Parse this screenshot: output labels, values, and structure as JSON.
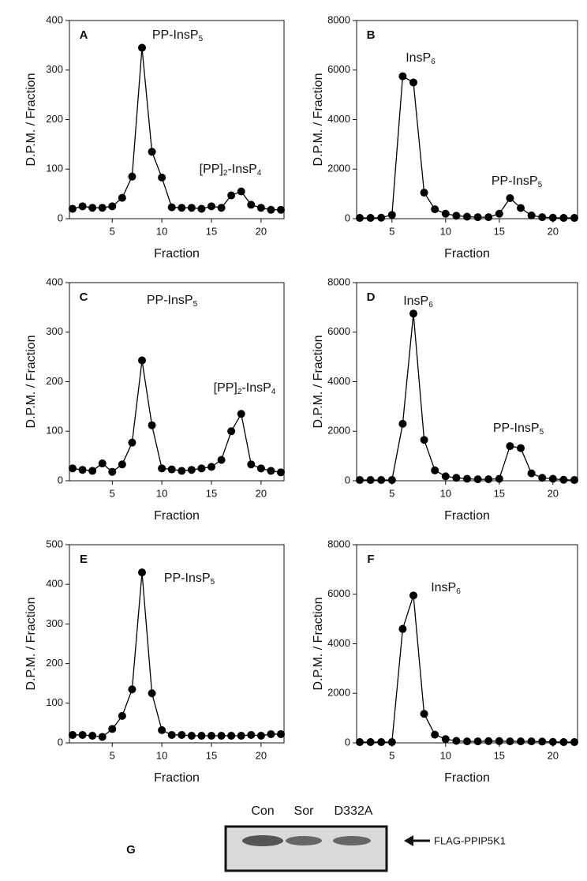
{
  "chart_data": [
    {
      "type": "line",
      "label": "A",
      "xlabel": "Fraction",
      "ylabel": "D.P.M. / Fraction",
      "x": [
        1,
        2,
        3,
        4,
        5,
        6,
        7,
        8,
        9,
        10,
        11,
        12,
        13,
        14,
        15,
        16,
        17,
        18,
        19,
        20,
        21,
        22
      ],
      "values": [
        20,
        25,
        22,
        22,
        25,
        42,
        85,
        345,
        135,
        83,
        23,
        22,
        22,
        20,
        25,
        22,
        47,
        55,
        28,
        22,
        18,
        18
      ],
      "xlim": [
        1,
        22
      ],
      "xticks": [
        5,
        10,
        15,
        20
      ],
      "ylim": [
        0,
        400
      ],
      "yticks": [
        0,
        100,
        200,
        300,
        400
      ],
      "annotations": [
        "PP-InsP5",
        "[PP]2-InsP4"
      ],
      "color": "#000000"
    },
    {
      "type": "line",
      "label": "B",
      "xlabel": "Fraction",
      "ylabel": "D.P.M. / Fraction",
      "x": [
        2,
        3,
        4,
        5,
        6,
        7,
        8,
        9,
        10,
        11,
        12,
        13,
        14,
        15,
        16,
        17,
        18,
        19,
        20,
        21,
        22
      ],
      "values": [
        30,
        30,
        40,
        150,
        5750,
        5500,
        1050,
        380,
        200,
        120,
        80,
        60,
        60,
        200,
        830,
        430,
        130,
        60,
        40,
        30,
        30
      ],
      "xlim": [
        2,
        22
      ],
      "xticks": [
        5,
        10,
        15,
        20
      ],
      "ylim": [
        0,
        8000
      ],
      "yticks": [
        0,
        2000,
        4000,
        6000,
        8000
      ],
      "annotations": [
        "InsP6",
        "PP-InsP5"
      ],
      "color": "#000000"
    },
    {
      "type": "line",
      "label": "C",
      "xlabel": "Fraction",
      "ylabel": "D.P.M. / Fraction",
      "x": [
        1,
        2,
        3,
        4,
        5,
        6,
        7,
        8,
        9,
        10,
        11,
        12,
        13,
        14,
        15,
        16,
        17,
        18,
        19,
        20,
        21,
        22
      ],
      "values": [
        25,
        22,
        20,
        35,
        18,
        33,
        77,
        243,
        112,
        25,
        23,
        20,
        22,
        25,
        28,
        42,
        100,
        135,
        33,
        25,
        20,
        17
      ],
      "xlim": [
        1,
        22
      ],
      "xticks": [
        5,
        10,
        15,
        20
      ],
      "ylim": [
        0,
        400
      ],
      "yticks": [
        0,
        100,
        200,
        300,
        400
      ],
      "annotations": [
        "PP-InsP5",
        "[PP]2-InsP4"
      ],
      "color": "#000000"
    },
    {
      "type": "line",
      "label": "D",
      "xlabel": "Fraction",
      "ylabel": "D.P.M. / Fraction",
      "x": [
        2,
        3,
        4,
        5,
        6,
        7,
        8,
        9,
        10,
        11,
        12,
        13,
        14,
        15,
        16,
        17,
        18,
        19,
        20,
        21,
        22
      ],
      "values": [
        30,
        30,
        30,
        30,
        2300,
        6750,
        1650,
        420,
        180,
        120,
        80,
        60,
        60,
        80,
        1400,
        1320,
        300,
        120,
        80,
        40,
        30
      ],
      "xlim": [
        2,
        22
      ],
      "xticks": [
        5,
        10,
        15,
        20
      ],
      "ylim": [
        0,
        8000
      ],
      "yticks": [
        0,
        2000,
        4000,
        6000,
        8000
      ],
      "annotations": [
        "InsP6",
        "PP-InsP5"
      ],
      "color": "#000000"
    },
    {
      "type": "line",
      "label": "E",
      "xlabel": "Fraction",
      "ylabel": "D.P.M. / Fraction",
      "x": [
        1,
        2,
        3,
        4,
        5,
        6,
        7,
        8,
        9,
        10,
        11,
        12,
        13,
        14,
        15,
        16,
        17,
        18,
        19,
        20,
        21,
        22
      ],
      "values": [
        20,
        20,
        18,
        15,
        35,
        68,
        135,
        430,
        125,
        32,
        20,
        20,
        18,
        18,
        18,
        18,
        18,
        18,
        20,
        18,
        22,
        22
      ],
      "xlim": [
        1,
        22
      ],
      "xticks": [
        5,
        10,
        15,
        20
      ],
      "ylim": [
        0,
        500
      ],
      "yticks": [
        0,
        100,
        200,
        300,
        400,
        500
      ],
      "annotations": [
        "PP-InsP5"
      ],
      "color": "#000000"
    },
    {
      "type": "line",
      "label": "F",
      "xlabel": "Fraction",
      "ylabel": "D.P.M. / Fraction",
      "x": [
        2,
        3,
        4,
        5,
        6,
        7,
        8,
        9,
        10,
        11,
        12,
        13,
        14,
        15,
        16,
        17,
        18,
        19,
        20,
        21,
        22
      ],
      "values": [
        30,
        30,
        30,
        30,
        4600,
        5950,
        1170,
        330,
        150,
        80,
        60,
        60,
        70,
        70,
        60,
        60,
        60,
        50,
        40,
        30,
        30
      ],
      "xlim": [
        2,
        22
      ],
      "xticks": [
        5,
        10,
        15,
        20
      ],
      "ylim": [
        0,
        8000
      ],
      "yticks": [
        0,
        2000,
        4000,
        6000,
        8000
      ],
      "annotations": [
        "InsP6"
      ],
      "color": "#000000"
    }
  ],
  "blot": {
    "label": "G",
    "lanes": [
      "Con",
      "Sor",
      "D332A"
    ],
    "band": "FLAG-PPIP5K1"
  }
}
